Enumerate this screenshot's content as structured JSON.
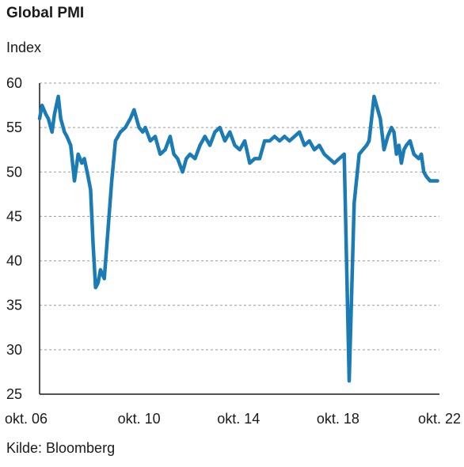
{
  "chart_data": {
    "type": "line",
    "title": "Global PMI",
    "ylabel": "Index",
    "source": "Kilde: Bloomberg",
    "ylim": [
      25,
      60
    ],
    "yticks": [
      25,
      30,
      35,
      40,
      45,
      50,
      55,
      60
    ],
    "xlim": [
      2006.75,
      2022.83
    ],
    "xticks": [
      {
        "label": "okt. 06",
        "x": 2006.75
      },
      {
        "label": "okt. 10",
        "x": 2010.75
      },
      {
        "label": "okt. 14",
        "x": 2014.75
      },
      {
        "label": "okt. 18",
        "x": 2018.75
      },
      {
        "label": "okt. 22",
        "x": 2022.75
      }
    ],
    "grid": "horizontal-dashed",
    "line_color": "#1a7bb5",
    "series": [
      {
        "x": [
          2006.75,
          2006.85,
          2007.0,
          2007.1,
          2007.25,
          2007.35,
          2007.5,
          2007.6,
          2007.75,
          2007.85,
          2008.0,
          2008.15,
          2008.3,
          2008.45,
          2008.55,
          2008.7,
          2008.8,
          2008.9,
          2009.0,
          2009.1,
          2009.2,
          2009.35,
          2009.5,
          2009.65,
          2009.8,
          2010.0,
          2010.2,
          2010.4,
          2010.55,
          2010.75,
          2010.9,
          2011.0,
          2011.2,
          2011.4,
          2011.6,
          2011.8,
          2012.0,
          2012.15,
          2012.3,
          2012.5,
          2012.65,
          2012.8,
          2013.0,
          2013.2,
          2013.4,
          2013.6,
          2013.8,
          2014.0,
          2014.2,
          2014.4,
          2014.6,
          2014.8,
          2015.0,
          2015.2,
          2015.4,
          2015.6,
          2015.8,
          2016.0,
          2016.2,
          2016.4,
          2016.6,
          2016.8,
          2017.0,
          2017.2,
          2017.4,
          2017.6,
          2017.8,
          2018.0,
          2018.2,
          2018.4,
          2018.6,
          2018.8,
          2019.0,
          2019.2,
          2019.4,
          2019.6,
          2019.75,
          2019.9,
          2020.0,
          2020.1,
          2020.2,
          2020.3,
          2020.45,
          2020.6,
          2020.75,
          2020.9,
          2021.0,
          2021.1,
          2021.2,
          2021.3,
          2021.4,
          2021.5,
          2021.65,
          2021.8,
          2022.0,
          2022.1,
          2022.2,
          2022.3,
          2022.45,
          2022.6,
          2022.75
        ],
        "y": [
          56.0,
          57.5,
          56.5,
          56.0,
          54.5,
          56.5,
          58.5,
          56.0,
          54.5,
          54.0,
          53.0,
          49.0,
          52.0,
          51.0,
          51.5,
          49.5,
          48.0,
          42.0,
          37.0,
          37.5,
          39.0,
          38.0,
          43.5,
          49.0,
          53.5,
          54.5,
          55.0,
          56.0,
          57.0,
          55.0,
          54.5,
          55.0,
          53.5,
          54.0,
          52.0,
          52.5,
          54.0,
          52.0,
          51.5,
          50.0,
          51.5,
          52.0,
          51.5,
          53.0,
          54.0,
          53.0,
          54.5,
          55.0,
          53.5,
          54.5,
          53.0,
          52.5,
          53.5,
          51.0,
          51.5,
          51.5,
          53.5,
          53.5,
          54.0,
          53.5,
          54.0,
          53.5,
          54.0,
          54.5,
          53.0,
          53.5,
          52.5,
          53.0,
          52.0,
          51.5,
          51.0,
          51.5,
          52.0,
          26.5,
          46.5,
          52.0,
          52.5,
          53.0,
          53.5,
          56.0,
          58.5,
          57.5,
          56.0,
          52.5,
          54.0,
          55.0,
          54.5,
          52.0,
          53.0,
          51.0,
          52.5,
          53.0,
          53.5,
          52.0,
          51.5,
          52.0,
          50.0,
          49.5,
          49.0,
          49.0,
          49.0
        ]
      }
    ]
  }
}
